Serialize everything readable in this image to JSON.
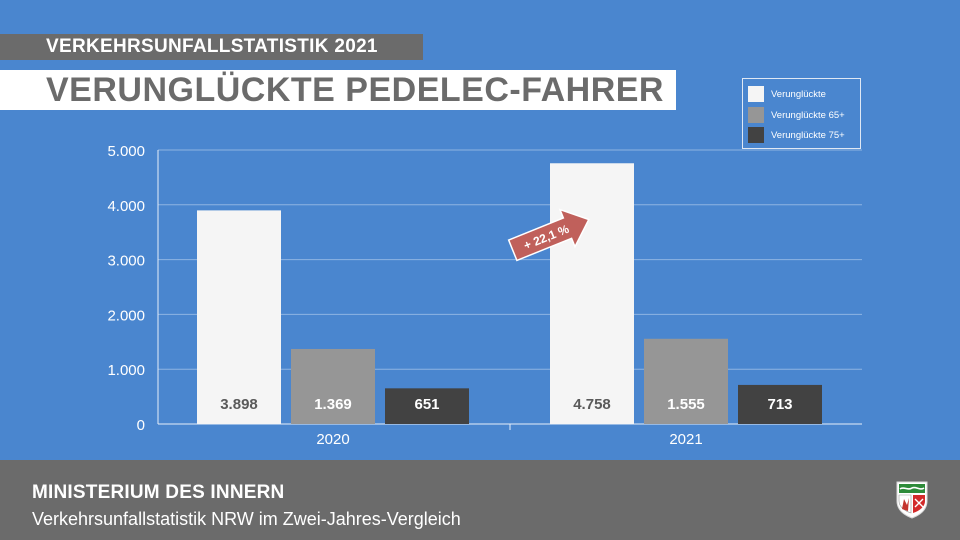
{
  "header": {
    "kicker": "VERKEHRSUNFALLSTATISTIK 2021",
    "headline": "VERUNGLÜCKTE PEDELEC-FAHRER"
  },
  "legend": [
    {
      "label": "Verunglückte",
      "color": "#f5f5f5"
    },
    {
      "label": "Verunglückte 65+",
      "color": "#969696"
    },
    {
      "label": "Verunglückte 75+",
      "color": "#424242"
    }
  ],
  "chart_data": {
    "type": "bar",
    "categories": [
      "2020",
      "2021"
    ],
    "series": [
      {
        "name": "Verunglückte",
        "values": [
          3898,
          4758
        ],
        "labels": [
          "3.898",
          "4.758"
        ],
        "color": "#f5f5f5",
        "label_color": "#5a5a5a"
      },
      {
        "name": "Verunglückte 65+",
        "values": [
          1369,
          1555
        ],
        "labels": [
          "1.369",
          "1.555"
        ],
        "color": "#969696",
        "label_color": "#ffffff"
      },
      {
        "name": "Verunglückte 75+",
        "values": [
          651,
          713
        ],
        "labels": [
          "651",
          "713"
        ],
        "color": "#424242",
        "label_color": "#ffffff"
      }
    ],
    "ylim": [
      0,
      5000
    ],
    "yticks": [
      0,
      1000,
      2000,
      3000,
      4000,
      5000
    ],
    "ytick_labels": [
      "0",
      "1.000",
      "2.000",
      "3.000",
      "4.000",
      "5.000"
    ],
    "grid": true,
    "legend_position": "top-right",
    "annotation": {
      "text": "+ 22,1 %",
      "color": "#c0605b"
    }
  },
  "footer": {
    "title": "MINISTERIUM DES INNERN",
    "subtitle": "Verkehrsunfallstatistik NRW im Zwei-Jahres-Vergleich"
  },
  "logo": {
    "name": "nrw-crest-icon"
  }
}
